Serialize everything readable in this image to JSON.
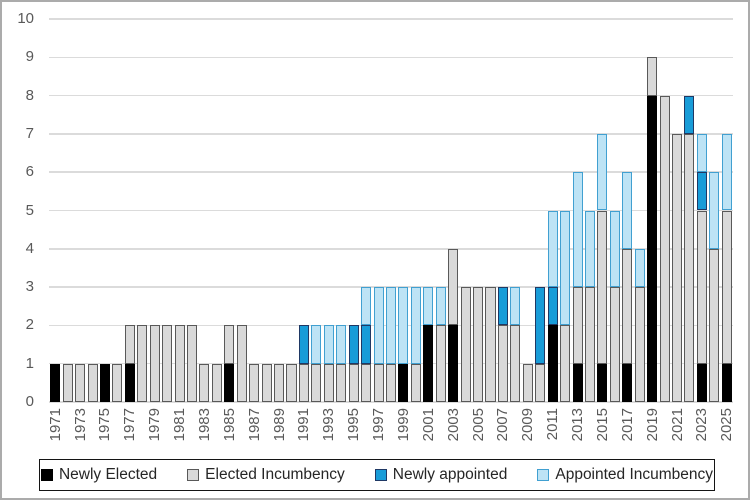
{
  "chart_data": {
    "type": "bar",
    "stacked": true,
    "title": "",
    "xlabel": "",
    "ylabel": "",
    "ylim": [
      0,
      10
    ],
    "yticks": [
      0,
      1,
      2,
      3,
      4,
      5,
      6,
      7,
      8,
      9,
      10
    ],
    "grid": true,
    "legend_position": "bottom-boxed",
    "axis_text_color": "#595959",
    "gridline_color": "#DBDBDB",
    "categories": [
      1971,
      1972,
      1973,
      1974,
      1975,
      1976,
      1977,
      1978,
      1979,
      1980,
      1981,
      1982,
      1983,
      1984,
      1985,
      1986,
      1987,
      1988,
      1989,
      1990,
      1991,
      1992,
      1993,
      1994,
      1995,
      1996,
      1997,
      1998,
      1999,
      2000,
      2001,
      2002,
      2003,
      2004,
      2005,
      2006,
      2007,
      2008,
      2009,
      2010,
      2011,
      2012,
      2013,
      2014,
      2015,
      2016,
      2017,
      2018,
      2019,
      2020,
      2021,
      2022,
      2023,
      2024,
      2025
    ],
    "xtick_labels": [
      "1971",
      "1973",
      "1975",
      "1977",
      "1979",
      "1981",
      "1983",
      "1985",
      "1987",
      "1989",
      "1991",
      "1993",
      "1995",
      "1997",
      "1999",
      "2001",
      "2003",
      "2005",
      "2007",
      "2009",
      "2011",
      "2013",
      "2015",
      "2017",
      "2019",
      "2021",
      "2023",
      "2025"
    ],
    "series": [
      {
        "name": "Newly Elected",
        "fill": "#000000",
        "border": "#000000",
        "values": [
          1,
          0,
          0,
          0,
          1,
          0,
          1,
          0,
          0,
          0,
          0,
          0,
          0,
          0,
          1,
          0,
          0,
          0,
          0,
          0,
          0,
          0,
          0,
          0,
          0,
          0,
          0,
          0,
          1,
          0,
          2,
          0,
          2,
          0,
          0,
          0,
          0,
          0,
          0,
          0,
          2,
          0,
          1,
          0,
          1,
          0,
          1,
          0,
          8,
          0,
          0,
          0,
          1,
          0,
          1
        ]
      },
      {
        "name": "Elected Incumbency",
        "fill": "#D9D9D9",
        "border": "#595959",
        "values": [
          0,
          1,
          1,
          1,
          0,
          1,
          1,
          2,
          2,
          2,
          2,
          2,
          1,
          1,
          1,
          2,
          1,
          1,
          1,
          1,
          1,
          1,
          1,
          1,
          1,
          1,
          1,
          1,
          0,
          1,
          0,
          2,
          2,
          3,
          3,
          3,
          2,
          2,
          1,
          1,
          0,
          2,
          2,
          3,
          4,
          3,
          3,
          3,
          1,
          8,
          7,
          7,
          4,
          4,
          4
        ]
      },
      {
        "name": "Newly appointed",
        "fill": "#189CD8",
        "border": "#1F3864",
        "values": [
          0,
          0,
          0,
          0,
          0,
          0,
          0,
          0,
          0,
          0,
          0,
          0,
          0,
          0,
          0,
          0,
          0,
          0,
          0,
          0,
          1,
          0,
          0,
          0,
          1,
          1,
          0,
          0,
          0,
          0,
          0,
          0,
          0,
          0,
          0,
          0,
          1,
          0,
          0,
          2,
          1,
          0,
          0,
          0,
          0,
          0,
          0,
          0,
          0,
          0,
          0,
          1,
          1,
          0,
          0
        ]
      },
      {
        "name": "Appointed Incumbency",
        "fill": "#BDE3F5",
        "border": "#41A0D1",
        "values": [
          0,
          0,
          0,
          0,
          0,
          0,
          0,
          0,
          0,
          0,
          0,
          0,
          0,
          0,
          0,
          0,
          0,
          0,
          0,
          0,
          0,
          1,
          1,
          1,
          0,
          1,
          2,
          2,
          2,
          2,
          1,
          1,
          0,
          0,
          0,
          0,
          0,
          1,
          0,
          0,
          2,
          3,
          3,
          2,
          2,
          2,
          2,
          1,
          0,
          0,
          0,
          0,
          1,
          2,
          2
        ]
      }
    ]
  }
}
